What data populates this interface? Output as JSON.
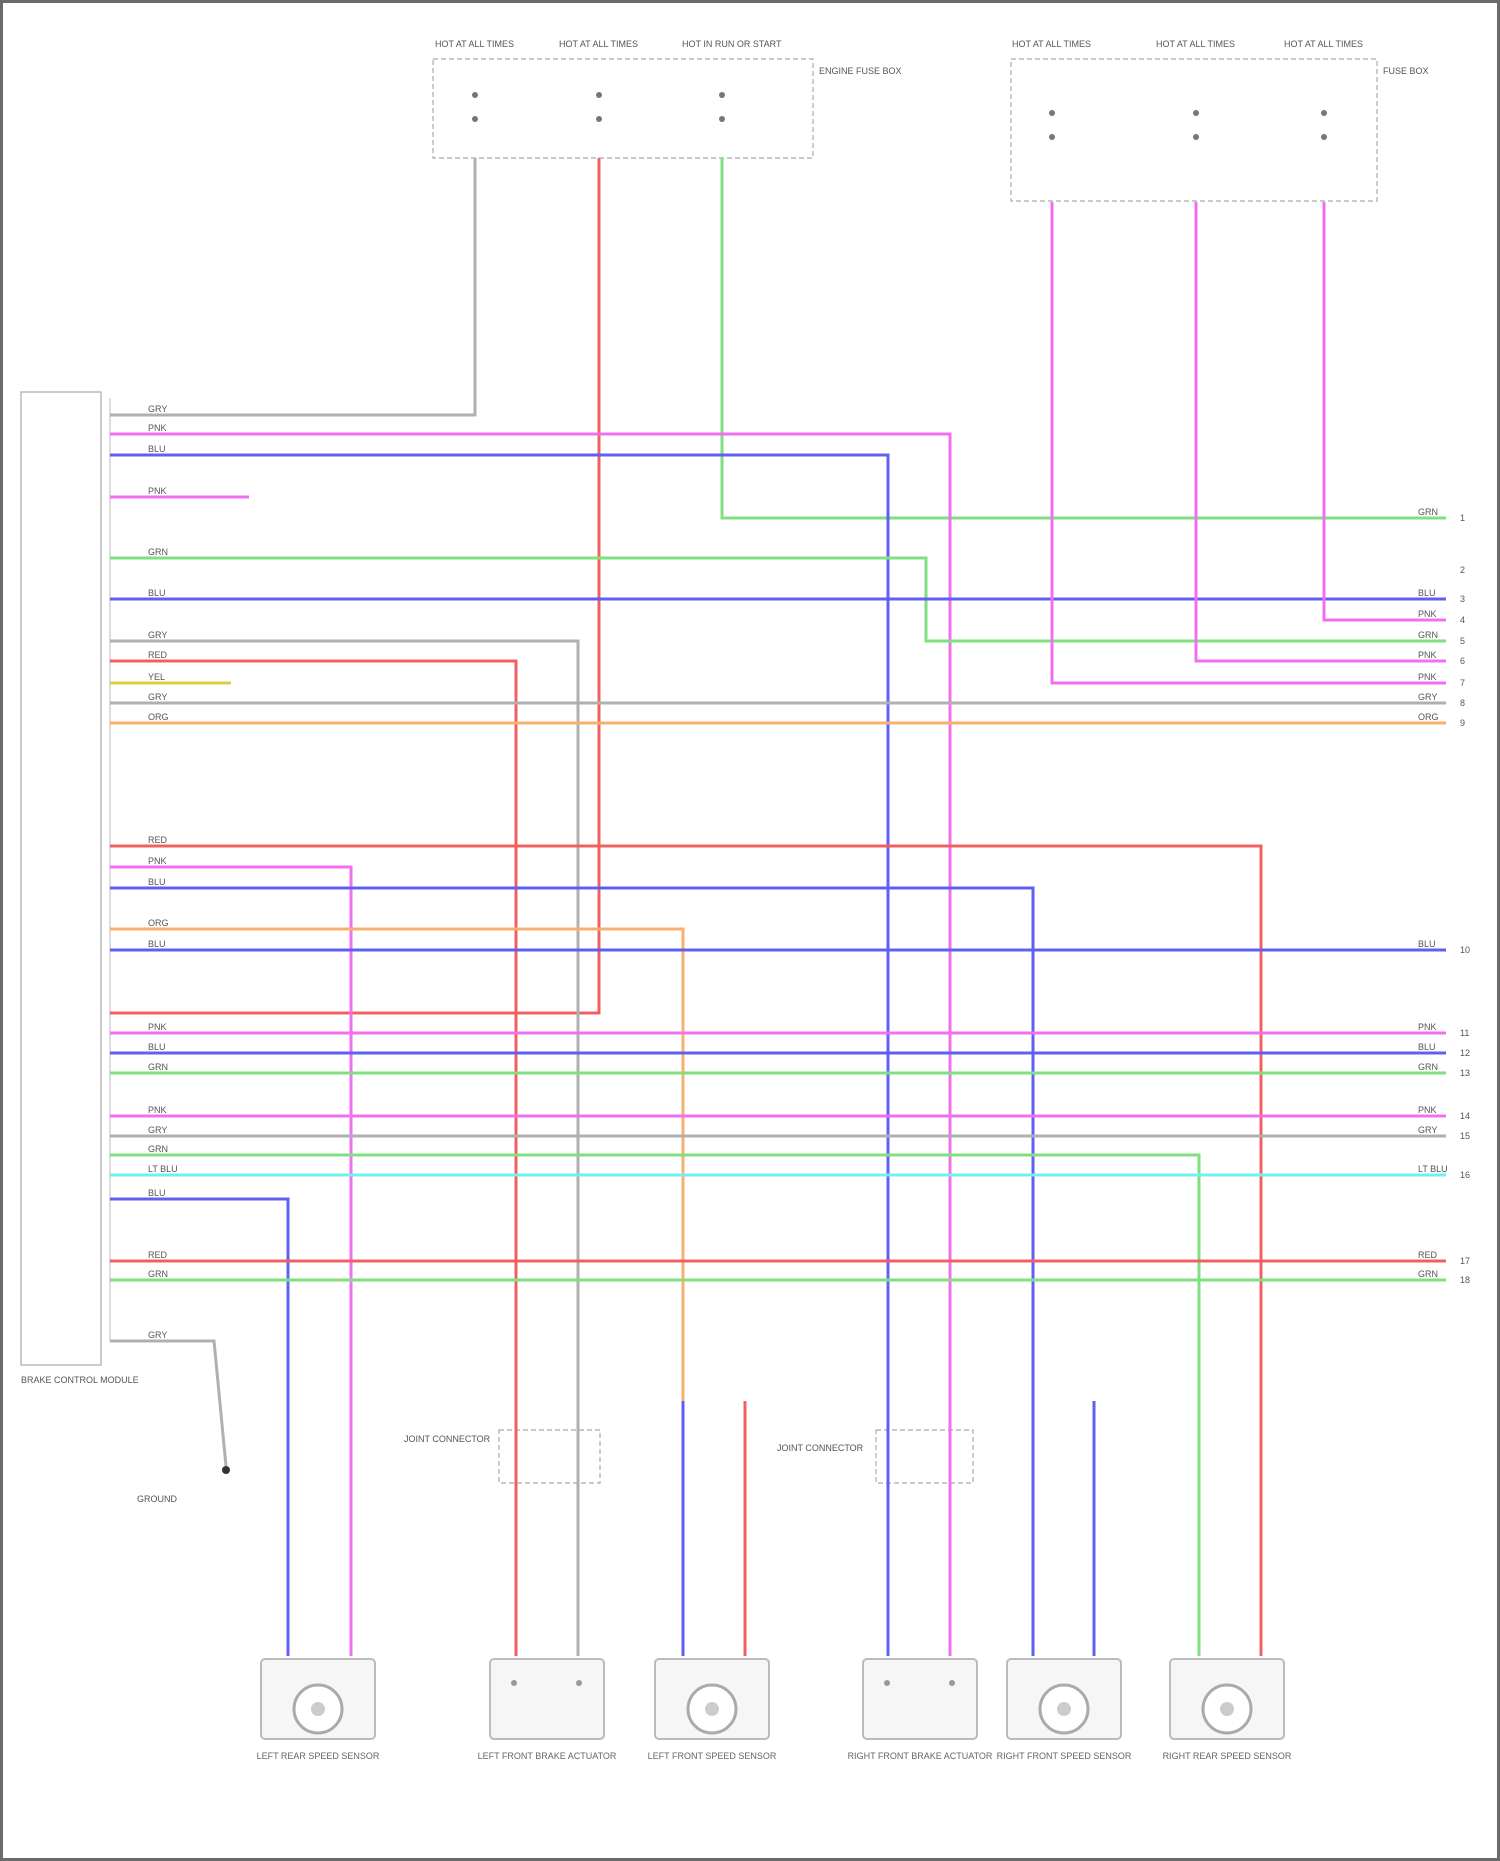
{
  "diagram": {
    "top_fuses_left": [
      {
        "label": "HOT AT ALL TIMES"
      },
      {
        "label": "HOT AT ALL TIMES"
      },
      {
        "label": "HOT IN RUN OR START"
      }
    ],
    "top_fuse_box_left": "ENGINE FUSE BOX",
    "top_fuses_right": [
      {
        "label": "HOT AT ALL TIMES"
      },
      {
        "label": "HOT AT ALL TIMES"
      },
      {
        "label": "HOT AT ALL TIMES"
      }
    ],
    "top_fuse_box_right": "FUSE BOX",
    "module_label": "BRAKE CONTROL MODULE",
    "ground_label": "GROUND",
    "connector_left_label": "JOINT CONNECTOR",
    "connector_right_label": "JOINT CONNECTOR",
    "wire_colors": {
      "GRY": "#b0b0b0",
      "PNK": "#f070f0",
      "BLU": "#6060f0",
      "GRN": "#80e080",
      "RED": "#f06060",
      "ORG": "#f8b070",
      "LT BLU": "#70f0f0",
      "YEL": "#d8d040"
    },
    "components": [
      {
        "label": "LEFT REAR SPEED SENSOR"
      },
      {
        "label": "LEFT FRONT BRAKE ACTUATOR"
      },
      {
        "label": "LEFT FRONT SPEED SENSOR"
      },
      {
        "label": "RIGHT FRONT BRAKE ACTUATOR"
      },
      {
        "label": "RIGHT FRONT SPEED SENSOR"
      },
      {
        "label": "RIGHT REAR SPEED SENSOR"
      }
    ],
    "right_pin_numbers": [
      "1",
      "2",
      "3",
      "4",
      "5",
      "6",
      "7",
      "8",
      "9",
      "10",
      "11",
      "12",
      "13",
      "14",
      "15",
      "16",
      "17",
      "18"
    ]
  }
}
